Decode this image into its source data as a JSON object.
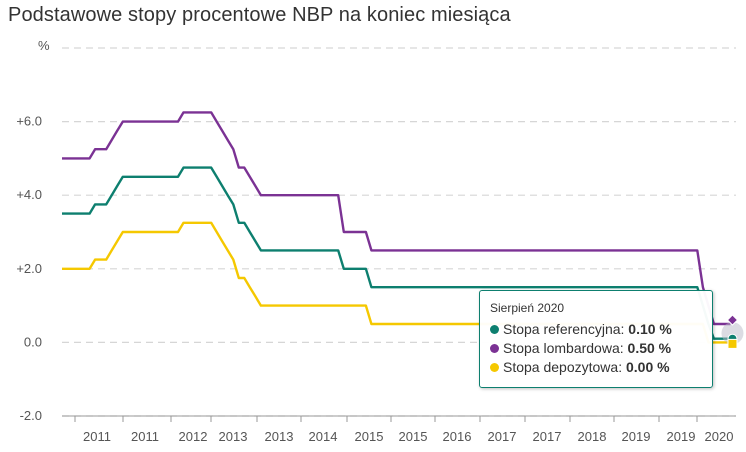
{
  "title": "Podstawowe stopy procentowe NBP na koniec miesiąca",
  "chart_data": {
    "type": "line",
    "ylabel": "%",
    "ylim": [
      -2.0,
      8.0
    ],
    "y_ticks": [
      "+6.0",
      "+4.0",
      "+2.0",
      "0.0",
      "-2.0"
    ],
    "y_tick_values": [
      6,
      4,
      2,
      0,
      -2
    ],
    "x_tick_labels": [
      "2011",
      "2011",
      "2012",
      "2013",
      "2013",
      "2014",
      "2015",
      "2015",
      "2016",
      "2017",
      "2017",
      "2018",
      "2019",
      "2019",
      "2020"
    ],
    "x_range": [
      "2010-07",
      "2020-09"
    ],
    "grid": "horizontal dashed",
    "series": [
      {
        "name": "Stopa referencyjna",
        "color": "#0d7f6f",
        "points": [
          [
            "2010-07",
            3.5
          ],
          [
            "2010-12",
            3.5
          ],
          [
            "2011-01",
            3.75
          ],
          [
            "2011-03",
            3.75
          ],
          [
            "2011-04",
            4.0
          ],
          [
            "2011-05",
            4.25
          ],
          [
            "2011-06",
            4.5
          ],
          [
            "2012-04",
            4.5
          ],
          [
            "2012-05",
            4.75
          ],
          [
            "2012-10",
            4.75
          ],
          [
            "2012-11",
            4.5
          ],
          [
            "2012-12",
            4.25
          ],
          [
            "2013-01",
            4.0
          ],
          [
            "2013-02",
            3.75
          ],
          [
            "2013-03",
            3.25
          ],
          [
            "2013-04",
            3.25
          ],
          [
            "2013-05",
            3.0
          ],
          [
            "2013-06",
            2.75
          ],
          [
            "2013-07",
            2.5
          ],
          [
            "2014-09",
            2.5
          ],
          [
            "2014-10",
            2.0
          ],
          [
            "2015-02",
            2.0
          ],
          [
            "2015-03",
            1.5
          ],
          [
            "2020-02",
            1.5
          ],
          [
            "2020-03",
            1.0
          ],
          [
            "2020-04",
            0.5
          ],
          [
            "2020-05",
            0.1
          ],
          [
            "2020-08",
            0.1
          ]
        ]
      },
      {
        "name": "Stopa lombardowa",
        "color": "#7b3294",
        "points": [
          [
            "2010-07",
            5.0
          ],
          [
            "2010-12",
            5.0
          ],
          [
            "2011-01",
            5.25
          ],
          [
            "2011-03",
            5.25
          ],
          [
            "2011-04",
            5.5
          ],
          [
            "2011-05",
            5.75
          ],
          [
            "2011-06",
            6.0
          ],
          [
            "2012-04",
            6.0
          ],
          [
            "2012-05",
            6.25
          ],
          [
            "2012-10",
            6.25
          ],
          [
            "2012-11",
            6.0
          ],
          [
            "2012-12",
            5.75
          ],
          [
            "2013-01",
            5.5
          ],
          [
            "2013-02",
            5.25
          ],
          [
            "2013-03",
            4.75
          ],
          [
            "2013-04",
            4.75
          ],
          [
            "2013-05",
            4.5
          ],
          [
            "2013-06",
            4.25
          ],
          [
            "2013-07",
            4.0
          ],
          [
            "2014-09",
            4.0
          ],
          [
            "2014-10",
            3.0
          ],
          [
            "2015-02",
            3.0
          ],
          [
            "2015-03",
            2.5
          ],
          [
            "2020-02",
            2.5
          ],
          [
            "2020-03",
            1.5
          ],
          [
            "2020-04",
            1.0
          ],
          [
            "2020-05",
            0.5
          ],
          [
            "2020-08",
            0.5
          ]
        ]
      },
      {
        "name": "Stopa depozytowa",
        "color": "#f5c800",
        "points": [
          [
            "2010-07",
            2.0
          ],
          [
            "2010-12",
            2.0
          ],
          [
            "2011-01",
            2.25
          ],
          [
            "2011-03",
            2.25
          ],
          [
            "2011-04",
            2.5
          ],
          [
            "2011-05",
            2.75
          ],
          [
            "2011-06",
            3.0
          ],
          [
            "2012-04",
            3.0
          ],
          [
            "2012-05",
            3.25
          ],
          [
            "2012-10",
            3.25
          ],
          [
            "2012-11",
            3.0
          ],
          [
            "2012-12",
            2.75
          ],
          [
            "2013-01",
            2.5
          ],
          [
            "2013-02",
            2.25
          ],
          [
            "2013-03",
            1.75
          ],
          [
            "2013-04",
            1.75
          ],
          [
            "2013-05",
            1.5
          ],
          [
            "2013-06",
            1.25
          ],
          [
            "2013-07",
            1.0
          ],
          [
            "2014-09",
            1.0
          ],
          [
            "2014-10",
            1.0
          ],
          [
            "2015-02",
            1.0
          ],
          [
            "2015-03",
            0.5
          ],
          [
            "2020-02",
            0.5
          ],
          [
            "2020-03",
            0.5
          ],
          [
            "2020-04",
            0.0
          ],
          [
            "2020-05",
            0.0
          ],
          [
            "2020-08",
            0.0
          ]
        ]
      }
    ]
  },
  "tooltip": {
    "title": "Sierpień 2020",
    "rows": [
      {
        "label": "Stopa referencyjna:",
        "value": "0.10 %",
        "color": "#0d7f6f"
      },
      {
        "label": "Stopa lombardowa:",
        "value": "0.50 %",
        "color": "#7b3294"
      },
      {
        "label": "Stopa depozytowa:",
        "value": "0.00 %",
        "color": "#f5c800"
      }
    ]
  }
}
